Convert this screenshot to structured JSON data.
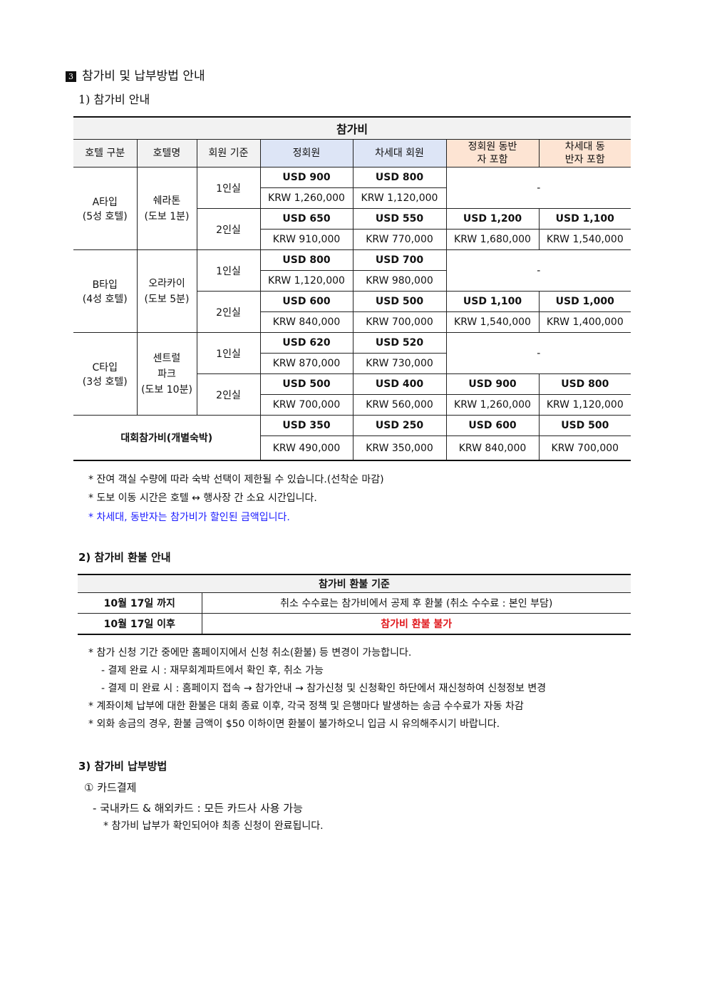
{
  "section": {
    "number": "3",
    "title": "참가비 및 납부방법 안내"
  },
  "fee": {
    "heading": "1) 참가비 안내",
    "table_title": "참가비",
    "columns": [
      "호텔 구분",
      "호텔명",
      "회원 기준",
      "정회원",
      "차세대 회원",
      "정회원 동반자 포함",
      "차세대 동반자 포함"
    ],
    "header_colors": {
      "member": "#dde5f6",
      "companion": "#fde4d3"
    },
    "hotels": [
      {
        "type": "A타입",
        "grade": "(5성 호텔)",
        "name": "쉐라톤",
        "walk": "(도보 1분)",
        "rooms": [
          {
            "room": "1인실",
            "usd": [
              "USD 900",
              "USD 800"
            ],
            "krw": [
              "KRW 1,260,000",
              "KRW 1,120,000"
            ],
            "companion": "-"
          },
          {
            "room": "2인실",
            "usd": [
              "USD 650",
              "USD 550",
              "USD 1,200",
              "USD 1,100"
            ],
            "krw": [
              "KRW 910,000",
              "KRW 770,000",
              "KRW 1,680,000",
              "KRW 1,540,000"
            ]
          }
        ]
      },
      {
        "type": "B타입",
        "grade": "(4성 호텔)",
        "name": "오라카이",
        "walk": "(도보 5분)",
        "rooms": [
          {
            "room": "1인실",
            "usd": [
              "USD 800",
              "USD 700"
            ],
            "krw": [
              "KRW 1,120,000",
              "KRW 980,000"
            ],
            "companion": "-"
          },
          {
            "room": "2인실",
            "usd": [
              "USD 600",
              "USD 500",
              "USD 1,100",
              "USD 1,000"
            ],
            "krw": [
              "KRW 840,000",
              "KRW 700,000",
              "KRW 1,540,000",
              "KRW 1,400,000"
            ]
          }
        ]
      },
      {
        "type": "C타입",
        "grade": "(3성 호텔)",
        "name": "센트럴 파크",
        "walk": "(도보 10분)",
        "rooms": [
          {
            "room": "1인실",
            "usd": [
              "USD 620",
              "USD 520"
            ],
            "krw": [
              "KRW 870,000",
              "KRW 730,000"
            ],
            "companion": "-"
          },
          {
            "room": "2인실",
            "usd": [
              "USD 500",
              "USD 400",
              "USD 900",
              "USD 800"
            ],
            "krw": [
              "KRW 700,000",
              "KRW 560,000",
              "KRW 1,260,000",
              "KRW 1,120,000"
            ]
          }
        ]
      }
    ],
    "conference_only": {
      "label": "대회참가비(개별숙박)",
      "usd": [
        "USD 350",
        "USD 250",
        "USD 600",
        "USD 500"
      ],
      "krw": [
        "KRW 490,000",
        "KRW 350,000",
        "KRW 840,000",
        "KRW 700,000"
      ]
    },
    "notes": [
      "* 잔여 객실 수량에 따라 숙박 선택이 제한될 수 있습니다.(선착순 마감)",
      "* 도보 이동 시간은 호텔 ↔ 행사장 간 소요 시간입니다.",
      "* 차세대, 동반자는 참가비가 할인된 금액입니다."
    ]
  },
  "refund": {
    "heading": "2) 참가비 환불 안내",
    "table_title": "참가비 환불 기준",
    "rows": [
      {
        "period": "10월 17일 까지",
        "policy": "취소 수수료는 참가비에서 공제 후 환불 (취소 수수료 : 본인 부담)"
      },
      {
        "period": "10월 17일 이후",
        "policy": "참가비 환불 불가"
      }
    ],
    "notes": [
      "* 참가 신청 기간 중에만 홈페이지에서 신청 취소(환불) 등 변경이 가능합니다.",
      "- 결제 완료 시 : 재무회계파트에서 확인 후, 취소 가능",
      "- 결제 미 완료 시 : 홈페이지 접속 → 참가안내 → 참가신청 및 신청확인 하단에서 재신청하여 신청정보 변경",
      "* 계좌이체 납부에 대한 환불은 대회 종료 이후, 각국 정책 및 은행마다 발생하는 송금 수수료가 자동 차감",
      "* 외화 송금의 경우, 환불 금액이 $50 이하이면 환불이 불가하오니 입금 시 유의해주시기 바랍니다."
    ]
  },
  "payment": {
    "heading": "3) 참가비 납부방법",
    "method": "① 카드결제",
    "detail": "- 국내카드 & 해외카드 : 모든 카드사 사용 가능",
    "note": "* 참가비 납부가 확인되어야 최종 신청이 완료됩니다."
  }
}
